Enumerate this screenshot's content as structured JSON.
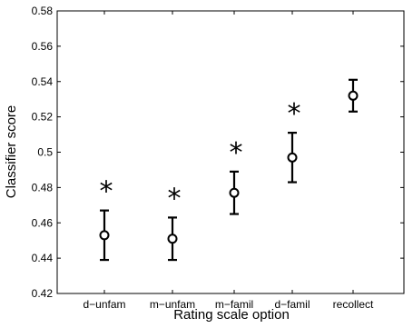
{
  "chart_data": {
    "type": "scatter",
    "title": "",
    "xlabel": "Rating scale option",
    "ylabel": "Classifier score",
    "categories": [
      "d−unfam",
      "m−unfam",
      "m−famil",
      "d−famil",
      "recollect"
    ],
    "values": [
      0.453,
      0.451,
      0.477,
      0.497,
      0.532
    ],
    "error_low": [
      0.439,
      0.439,
      0.465,
      0.483,
      0.523
    ],
    "error_high": [
      0.467,
      0.463,
      0.489,
      0.511,
      0.541
    ],
    "significance_marks": [
      "*",
      "*",
      "*",
      "*",
      ""
    ],
    "ylim": [
      0.42,
      0.58
    ],
    "yticks": [
      "0.42",
      "0.44",
      "0.46",
      "0.48",
      "0.5",
      "0.52",
      "0.54",
      "0.56",
      "0.58"
    ],
    "grid": false,
    "marker": "circle-open",
    "colors": {
      "marks": "#000000",
      "axes": "#000000",
      "background": "#ffffff"
    }
  }
}
